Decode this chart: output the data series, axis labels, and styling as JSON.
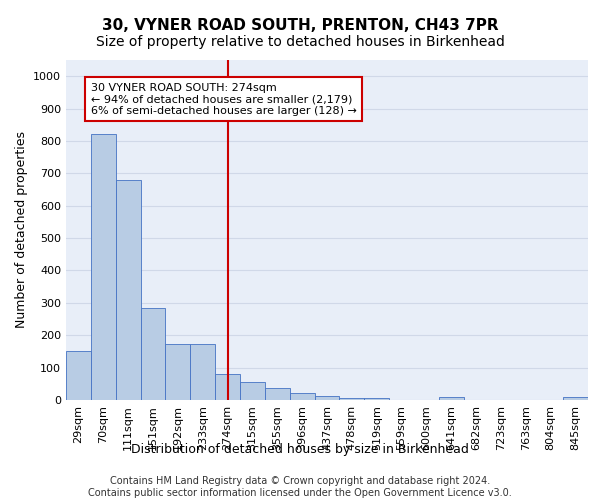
{
  "title": "30, VYNER ROAD SOUTH, PRENTON, CH43 7PR",
  "subtitle": "Size of property relative to detached houses in Birkenhead",
  "xlabel": "Distribution of detached houses by size in Birkenhead",
  "ylabel": "Number of detached properties",
  "categories": [
    "29sqm",
    "70sqm",
    "111sqm",
    "151sqm",
    "192sqm",
    "233sqm",
    "274sqm",
    "315sqm",
    "355sqm",
    "396sqm",
    "437sqm",
    "478sqm",
    "519sqm",
    "559sqm",
    "600sqm",
    "641sqm",
    "682sqm",
    "723sqm",
    "763sqm",
    "804sqm",
    "845sqm"
  ],
  "values": [
    150,
    820,
    680,
    285,
    172,
    172,
    80,
    55,
    38,
    22,
    12,
    7,
    7,
    0,
    0,
    10,
    0,
    0,
    0,
    0,
    10
  ],
  "bar_color": "#b8cce4",
  "bar_edge_color": "#4472c4",
  "highlight_index": 6,
  "highlight_line_color": "#cc0000",
  "annotation_text": "30 VYNER ROAD SOUTH: 274sqm\n← 94% of detached houses are smaller (2,179)\n6% of semi-detached houses are larger (128) →",
  "annotation_box_color": "#cc0000",
  "ylim": [
    0,
    1050
  ],
  "yticks": [
    0,
    100,
    200,
    300,
    400,
    500,
    600,
    700,
    800,
    900,
    1000
  ],
  "grid_color": "#d0d8e8",
  "bg_color": "#e8eef8",
  "footer": "Contains HM Land Registry data © Crown copyright and database right 2024.\nContains public sector information licensed under the Open Government Licence v3.0.",
  "title_fontsize": 11,
  "subtitle_fontsize": 10,
  "xlabel_fontsize": 9,
  "ylabel_fontsize": 9,
  "tick_fontsize": 8,
  "annotation_fontsize": 8,
  "footer_fontsize": 7
}
